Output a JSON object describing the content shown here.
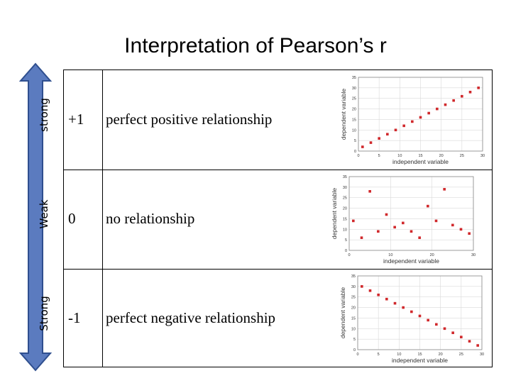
{
  "title": "Interpretation of Pearson’s r",
  "scale_labels": {
    "top": "strong",
    "middle": "Weak",
    "bottom": "Strong"
  },
  "colors": {
    "arrow_fill": "#5b7bbf",
    "arrow_stroke": "#2f4f8f",
    "points": "#d0282b",
    "grid": "#d9d9d9"
  },
  "rows": [
    {
      "value": "+1",
      "description": "perfect positive relationship"
    },
    {
      "value": "0",
      "description": "no relationship"
    },
    {
      "value": "-1",
      "description": "perfect negative relationship"
    }
  ],
  "chart_data": [
    {
      "type": "scatter",
      "xlabel": "independent variable",
      "ylabel": "dependent variable",
      "xlim": [
        0,
        30
      ],
      "ylim": [
        0,
        35
      ],
      "xticks": [
        0,
        5,
        10,
        15,
        20,
        25,
        30
      ],
      "yticks": [
        0,
        5,
        10,
        15,
        20,
        25,
        30,
        35
      ],
      "points": [
        [
          1,
          2
        ],
        [
          3,
          4
        ],
        [
          5,
          6
        ],
        [
          7,
          8
        ],
        [
          9,
          10
        ],
        [
          11,
          12
        ],
        [
          13,
          14
        ],
        [
          15,
          16
        ],
        [
          17,
          18
        ],
        [
          19,
          20
        ],
        [
          21,
          22
        ],
        [
          23,
          24
        ],
        [
          25,
          26
        ],
        [
          27,
          28
        ],
        [
          29,
          30
        ]
      ]
    },
    {
      "type": "scatter",
      "xlabel": "independent variable",
      "ylabel": "dependent variable",
      "xlim": [
        0,
        30
      ],
      "ylim": [
        0,
        35
      ],
      "xticks": [
        0,
        10,
        20,
        30
      ],
      "yticks": [
        0,
        5,
        10,
        15,
        20,
        25,
        30,
        35
      ],
      "points": [
        [
          1,
          14
        ],
        [
          3,
          6
        ],
        [
          5,
          28
        ],
        [
          7,
          9
        ],
        [
          9,
          17
        ],
        [
          11,
          11
        ],
        [
          13,
          13
        ],
        [
          15,
          9
        ],
        [
          17,
          6
        ],
        [
          19,
          21
        ],
        [
          21,
          14
        ],
        [
          23,
          29
        ],
        [
          25,
          12
        ],
        [
          27,
          10
        ],
        [
          29,
          8
        ]
      ]
    },
    {
      "type": "scatter",
      "xlabel": "independent variable",
      "ylabel": "dependent variable",
      "xlim": [
        0,
        30
      ],
      "ylim": [
        0,
        35
      ],
      "xticks": [
        0,
        5,
        10,
        15,
        20,
        25,
        30
      ],
      "yticks": [
        0,
        5,
        10,
        15,
        20,
        25,
        30,
        35
      ],
      "points": [
        [
          1,
          30
        ],
        [
          3,
          28
        ],
        [
          5,
          26
        ],
        [
          7,
          24
        ],
        [
          9,
          22
        ],
        [
          11,
          20
        ],
        [
          13,
          18
        ],
        [
          15,
          16
        ],
        [
          17,
          14
        ],
        [
          19,
          12
        ],
        [
          21,
          10
        ],
        [
          23,
          8
        ],
        [
          25,
          6
        ],
        [
          27,
          4
        ],
        [
          29,
          2
        ]
      ]
    }
  ]
}
